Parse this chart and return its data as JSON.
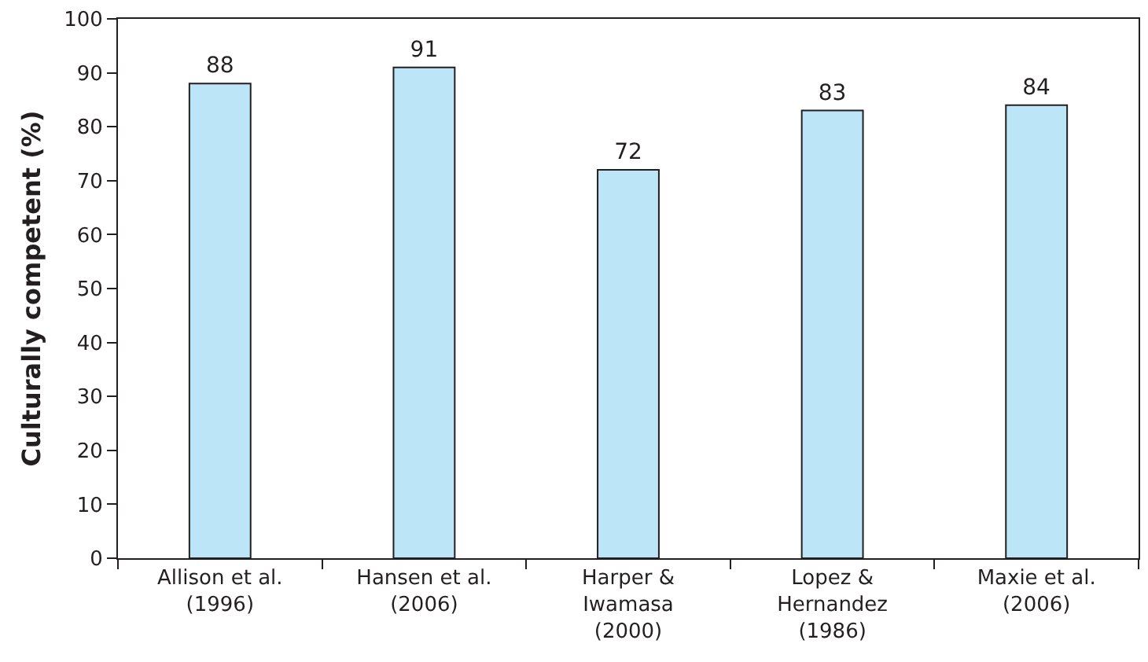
{
  "chart_data": {
    "type": "bar",
    "ylabel": "Culturally competent (%)",
    "categories": [
      "Allison et al.\n(1996)",
      "Hansen et al.\n(2006)",
      "Harper &\nIwamasa\n(2000)",
      "Lopez &\nHernandez\n(1986)",
      "Maxie et al.\n(2006)"
    ],
    "values": [
      88,
      91,
      72,
      83,
      84
    ],
    "color": "#bde5f8",
    "ylim": [
      0,
      100
    ],
    "yticks": [
      0,
      10,
      20,
      30,
      40,
      50,
      60,
      70,
      80,
      90,
      100
    ],
    "grid": false,
    "data_labels": true
  }
}
